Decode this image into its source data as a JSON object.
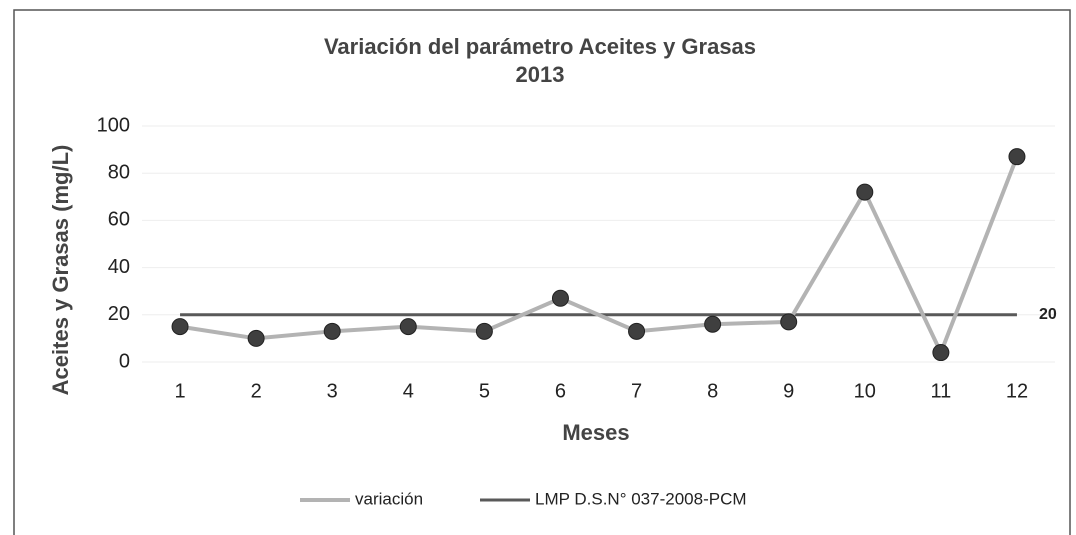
{
  "chart_data": {
    "type": "line",
    "title": "Variación del parámetro Aceites y Grasas",
    "subtitle": "2013",
    "x_label": "Meses",
    "y_label": "Aceites y Grasas (mg/L)",
    "categories": [
      "1",
      "2",
      "3",
      "4",
      "5",
      "6",
      "7",
      "8",
      "9",
      "10",
      "11",
      "12"
    ],
    "series": [
      {
        "name": "variación",
        "color": "#b3b3b3",
        "marker_color": "#3f3f3f",
        "values": [
          15,
          10,
          13,
          15,
          13,
          27,
          13,
          16,
          17,
          72,
          4,
          87
        ]
      },
      {
        "name": "LMP D.S.N° 037-2008-PCM",
        "color": "#595959",
        "values": [
          20,
          20,
          20,
          20,
          20,
          20,
          20,
          20,
          20,
          20,
          20,
          20
        ]
      }
    ],
    "ylim": [
      0,
      100
    ],
    "yticks": [
      0,
      20,
      40,
      60,
      80,
      100
    ],
    "grid": true,
    "legend": "bottom"
  }
}
